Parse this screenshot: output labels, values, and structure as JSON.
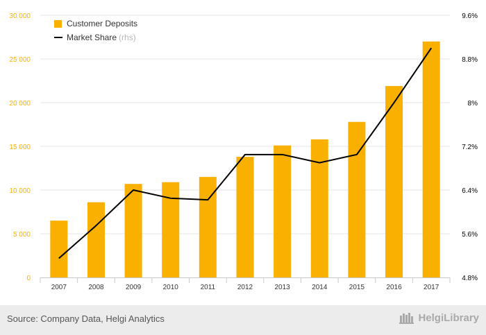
{
  "chart_data": {
    "type": "bar+line",
    "categories": [
      "2007",
      "2008",
      "2009",
      "2010",
      "2011",
      "2012",
      "2013",
      "2014",
      "2015",
      "2016",
      "2017"
    ],
    "series": [
      {
        "name": "Customer Deposits",
        "type": "bar",
        "axis": "left",
        "color": "#f9b000",
        "values": [
          6500,
          8600,
          10700,
          10900,
          11500,
          13800,
          15100,
          15800,
          17800,
          21900,
          27000
        ]
      },
      {
        "name": "Market Share",
        "name_suffix": "(rhs)",
        "type": "line",
        "axis": "right",
        "color": "#000000",
        "values": [
          5.15,
          5.75,
          6.4,
          6.25,
          6.22,
          7.05,
          7.05,
          6.9,
          7.05,
          8.0,
          9.0
        ]
      }
    ],
    "y_left": {
      "lim": [
        0,
        30000
      ],
      "ticks": [
        0,
        5000,
        10000,
        15000,
        20000,
        25000,
        30000
      ],
      "tick_labels": [
        "0",
        "5 000",
        "10 000",
        "15 000",
        "20 000",
        "25 000",
        "30 000"
      ],
      "color": "#f9b000"
    },
    "y_right": {
      "lim": [
        4.8,
        9.6
      ],
      "ticks": [
        4.8,
        5.6,
        6.4,
        7.2,
        8.0,
        8.8,
        9.6
      ],
      "tick_labels": [
        "4.8%",
        "5.6%",
        "6.4%",
        "7.2%",
        "8%",
        "8.8%",
        "9.6%"
      ],
      "color": "#000000"
    },
    "grid": true,
    "legend": "top-left"
  },
  "footer": {
    "source": "Source: Company Data, Helgi Analytics",
    "brand": "HelgiLibrary"
  },
  "colors": {
    "bar": "#f9b000",
    "line": "#000000",
    "footer_bg": "#ececec"
  }
}
